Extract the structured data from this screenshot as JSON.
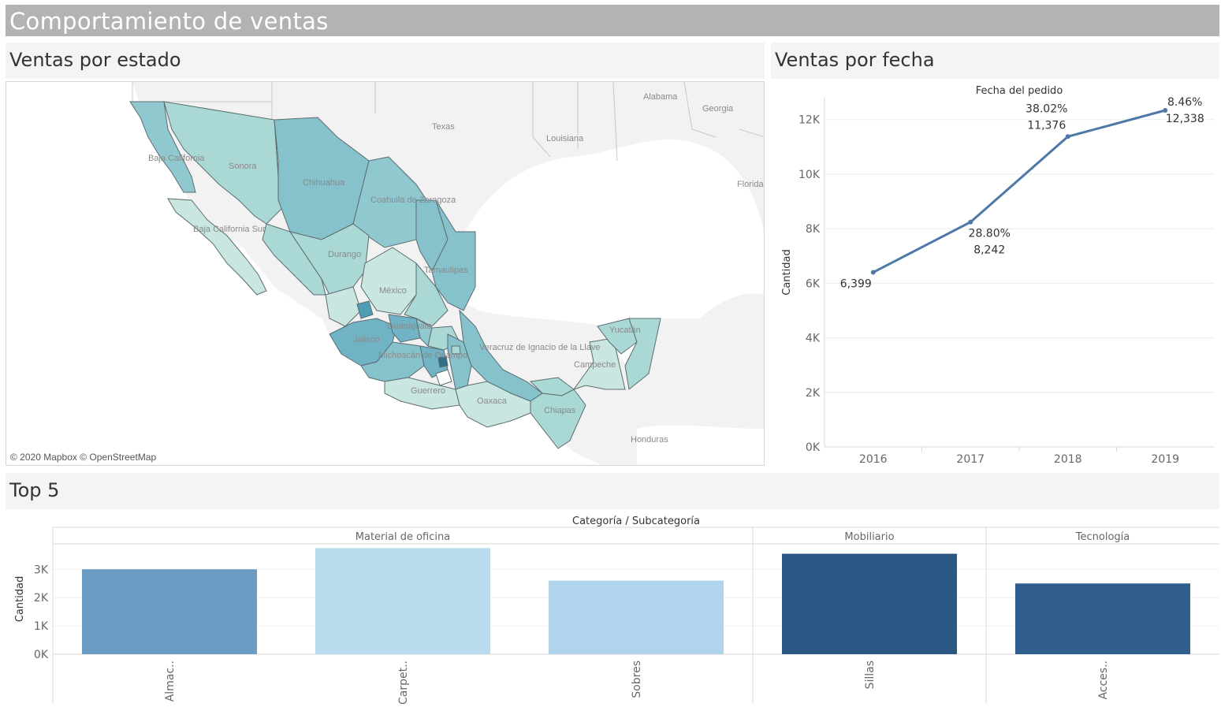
{
  "dashboard_title": "Comportamiento de ventas",
  "sections": {
    "map_title": "Ventas por estado",
    "line_title": "Ventas por fecha",
    "bar_title": "Top 5"
  },
  "map": {
    "credit": "© 2020 Mapbox © OpenStreetMap",
    "labels": {
      "texas": "Texas",
      "louisiana": "Louisiana",
      "alabama": "Alabama",
      "georgia": "Georgia",
      "florida": "Florida",
      "mexico": "México",
      "honduras": "Honduras",
      "baja_california": "Baja California",
      "baja_california_sur": "Baja California Sur",
      "sonora": "Sonora",
      "chihuahua": "Chihuahua",
      "coahuila": "Coahuila de Zaragoza",
      "durango": "Durango",
      "tamaulipas": "Tamaulipas",
      "jalisco": "Jalisco",
      "guanajuato": "Guanajuato",
      "michoacan": "Michoacán de Ocampo",
      "guerrero": "Guerrero",
      "oaxaca": "Oaxaca",
      "veracruz": "Veracruz de Ignacio de la Llave",
      "campeche": "Campeche",
      "yucatan": "Yucatán",
      "chiapas": "Chiapas"
    },
    "colors": {
      "lightest": "#c9e6e0",
      "light": "#a9d8d5",
      "mid": "#8fc8cf",
      "dark": "#6fb3c4",
      "darker": "#4e9db5",
      "darkest": "#2f6f8a"
    }
  },
  "chart_data": [
    {
      "type": "line",
      "title": "Fecha del pedido",
      "ylabel": "Cantidad",
      "x": [
        "2016",
        "2017",
        "2018",
        "2019"
      ],
      "y": [
        6399,
        8242,
        11376,
        12338
      ],
      "value_labels": [
        "6,399",
        "8,242",
        "11,376",
        "12,338"
      ],
      "pct_labels": [
        "",
        "28.80%",
        "38.02%",
        "8.46%"
      ],
      "ylim": [
        0,
        12800
      ],
      "yticks": [
        0,
        2000,
        4000,
        6000,
        8000,
        10000,
        12000
      ],
      "ytick_labels": [
        "0K",
        "2K",
        "4K",
        "6K",
        "8K",
        "10K",
        "12K"
      ],
      "color": "#4e79a7",
      "grid": true
    },
    {
      "type": "bar",
      "title": "Categoría / Subcategoría",
      "ylabel": "Cantidad",
      "groups": [
        {
          "name": "Material de oficina",
          "categories": [
            "Almac..",
            "Carpet..",
            "Sobres"
          ]
        },
        {
          "name": "Mobiliario",
          "categories": [
            "Sillas"
          ]
        },
        {
          "name": "Tecnología",
          "categories": [
            "Acces.."
          ]
        }
      ],
      "categories": [
        "Almac..",
        "Carpet..",
        "Sobres",
        "Sillas",
        "Acces.."
      ],
      "values": [
        3000,
        3750,
        2600,
        3550,
        2500
      ],
      "colors": [
        "#6a9bc3",
        "#b8dcee",
        "#b0d4ec",
        "#2a5783",
        "#305f8d"
      ],
      "ylim": [
        0,
        3900
      ],
      "yticks": [
        0,
        1000,
        2000,
        3000
      ],
      "ytick_labels": [
        "0K",
        "1K",
        "2K",
        "3K"
      ]
    }
  ]
}
